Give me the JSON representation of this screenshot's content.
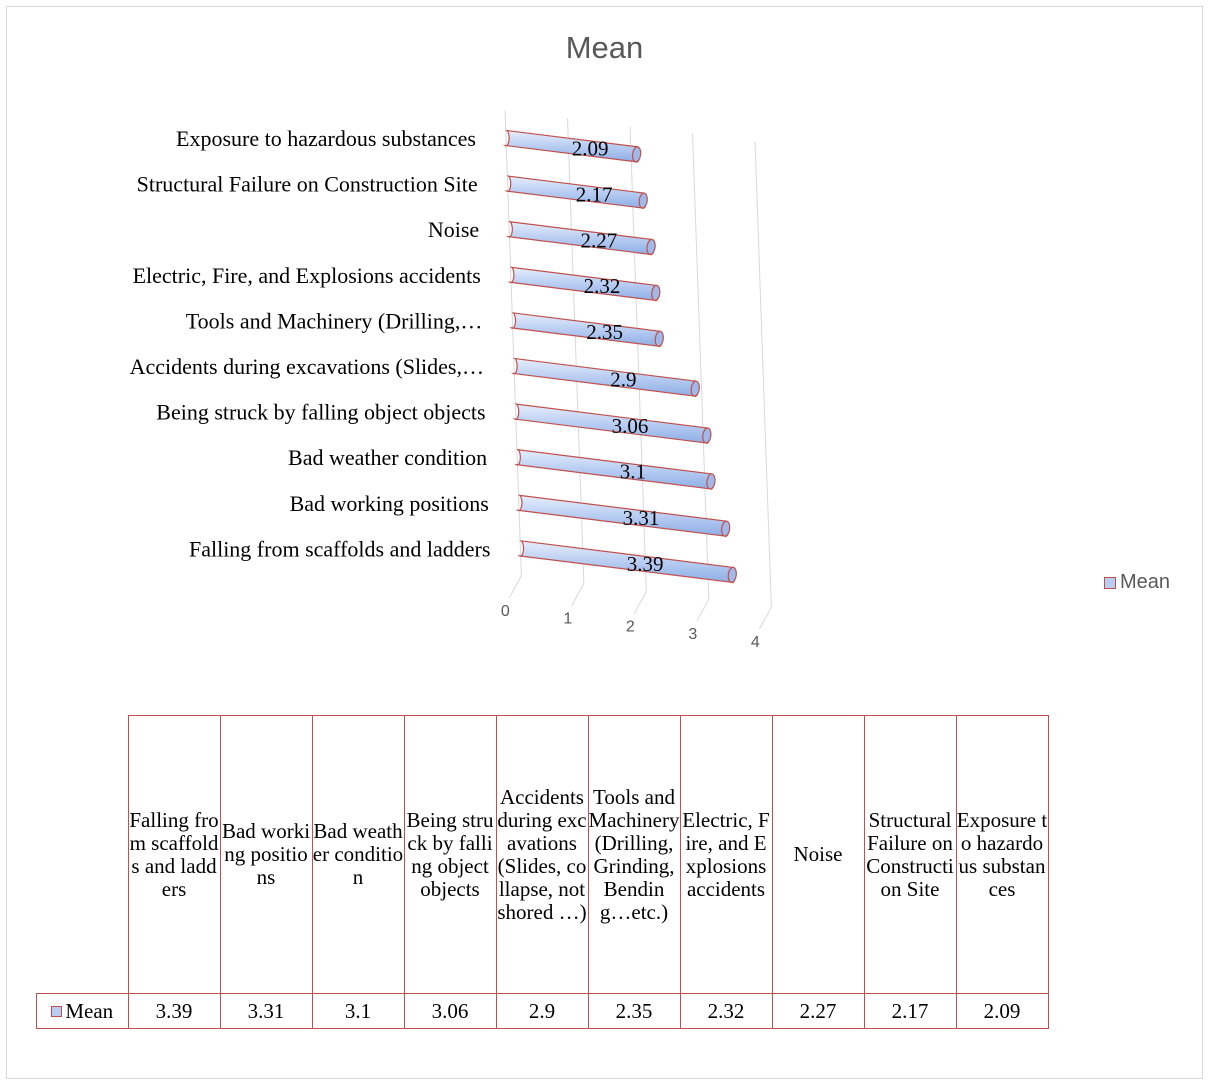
{
  "chart_data": {
    "type": "bar",
    "orientation": "horizontal",
    "title": "Mean",
    "categories": [
      "Falling from scaffolds and ladders",
      "Bad working positions",
      "Bad weather condition",
      "Being struck by falling object objects",
      "Accidents during excavations (Slides,…",
      "Tools and Machinery (Drilling,…",
      "Electric, Fire, and Explosions accidents",
      "Noise",
      "Structural Failure on Construction Site",
      "Exposure to hazardous substances"
    ],
    "series": [
      {
        "name": "Mean",
        "values": [
          3.39,
          3.31,
          3.1,
          3.06,
          2.9,
          2.35,
          2.32,
          2.27,
          2.17,
          2.09
        ]
      }
    ],
    "value_labels": [
      "3.39",
      "3.31",
      "3.1",
      "3.06",
      "2.9",
      "2.35",
      "2.32",
      "2.27",
      "2.17",
      "2.09"
    ],
    "xlim": [
      0,
      4
    ],
    "ticks": [
      "0",
      "1",
      "2",
      "3",
      "4"
    ],
    "gridlines": true,
    "legend": "right",
    "colors": {
      "bar_fill": "#b8cdf2",
      "bar_outline": "#c0504d"
    },
    "data_table": {
      "row_label": "Mean",
      "headers": [
        "Falling from scaffolds and ladders",
        "Bad working positions",
        "Bad weather condition",
        "Being struck by falling object objects",
        "Accidents during excavations (Slides, collapse, not shored …)",
        "Tools and Machinery (Drilling, Grinding, Bending…etc.)",
        "Electric, Fire, and Explosions accidents",
        "Noise",
        "Structural Failure on Construction Site",
        "Exposure to hazardous substances"
      ],
      "values": [
        "3.39",
        "3.31",
        "3.1",
        "3.06",
        "2.9",
        "2.35",
        "2.32",
        "2.27",
        "2.17",
        "2.09"
      ]
    }
  }
}
